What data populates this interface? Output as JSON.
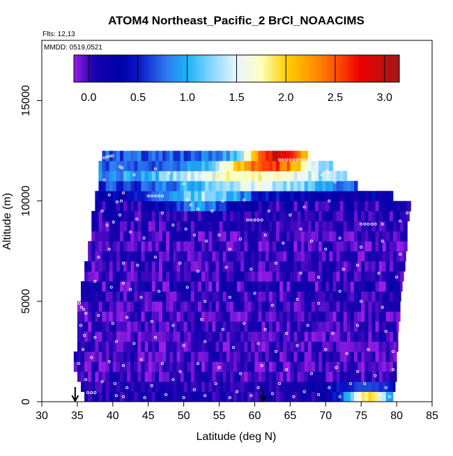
{
  "chart_data": {
    "type": "heatmap",
    "title": "ATOM4 Northeast_Pacific_2 BrCl_NOAACIMS",
    "annotations": {
      "flights": "Flts: 12,13",
      "dates": "MMDD: 0519,0521"
    },
    "xlabel": "Latitude (deg N)",
    "ylabel": "Altitude (m)",
    "xlim": [
      30,
      85
    ],
    "ylim": [
      0,
      18000
    ],
    "x_ticks": [
      30,
      35,
      40,
      45,
      50,
      55,
      60,
      65,
      70,
      75,
      80,
      85
    ],
    "x_tick_labels": [
      "30",
      "35",
      "40",
      "45",
      "50",
      "55",
      "60",
      "65",
      "70",
      "75",
      "80",
      "85"
    ],
    "y_ticks": [
      0,
      5000,
      10000,
      15000
    ],
    "y_tick_labels": [
      "0",
      "5000",
      "10000",
      "15000"
    ],
    "colorbar": {
      "range": [
        -0.15,
        3.15
      ],
      "ticks": [
        0.0,
        0.5,
        1.0,
        1.5,
        2.0,
        2.5,
        3.0
      ],
      "tick_labels": [
        "0.0",
        "0.5",
        "1.0",
        "1.5",
        "2.0",
        "2.5",
        "3.0"
      ],
      "stops": [
        {
          "v": -0.15,
          "c": "#9a1ee6"
        },
        {
          "v": 0.05,
          "c": "#1a00b0"
        },
        {
          "v": 0.3,
          "c": "#0000a6"
        },
        {
          "v": 0.5,
          "c": "#0a16c8"
        },
        {
          "v": 0.8,
          "c": "#2e7cf0"
        },
        {
          "v": 1.0,
          "c": "#1ab4f5"
        },
        {
          "v": 1.25,
          "c": "#8ad6ff"
        },
        {
          "v": 1.5,
          "c": "#e8f6ff"
        },
        {
          "v": 1.75,
          "c": "#ffffc0"
        },
        {
          "v": 2.0,
          "c": "#ffd000"
        },
        {
          "v": 2.25,
          "c": "#ff9a00"
        },
        {
          "v": 2.5,
          "c": "#ff5500"
        },
        {
          "v": 2.75,
          "c": "#ee0000"
        },
        {
          "v": 3.15,
          "c": "#a01818"
        }
      ]
    },
    "arrows_at_latitude": [
      34.7,
      61.2
    ],
    "altitude_bands": [
      {
        "alt": 0,
        "lat_min": 36.0,
        "lat_max": 79.5,
        "base": 0.1,
        "var": 0.15,
        "hot": {
          "lat": 76.0,
          "width": 3.5,
          "amp": 1.8
        }
      },
      {
        "alt": 500,
        "lat_min": 35.5,
        "lat_max": 79.8,
        "base": 0.05,
        "var": 0.1,
        "hot": {
          "lat": 75.5,
          "width": 6.0,
          "amp": 0.6
        }
      },
      {
        "alt": 1000,
        "lat_min": 35.0,
        "lat_max": 80.0,
        "base": 0.0,
        "var": 0.15
      },
      {
        "alt": 1500,
        "lat_min": 34.5,
        "lat_max": 80.0,
        "base": -0.02,
        "var": 0.15
      },
      {
        "alt": 2000,
        "lat_min": 34.5,
        "lat_max": 80.0,
        "base": 0.0,
        "var": 0.15
      },
      {
        "alt": 2500,
        "lat_min": 35.0,
        "lat_max": 80.2,
        "base": -0.02,
        "var": 0.15
      },
      {
        "alt": 3000,
        "lat_min": 35.0,
        "lat_max": 80.2,
        "base": 0.0,
        "var": 0.15
      },
      {
        "alt": 3500,
        "lat_min": 35.0,
        "lat_max": 80.3,
        "base": 0.0,
        "var": 0.15
      },
      {
        "alt": 4000,
        "lat_min": 35.0,
        "lat_max": 80.5,
        "base": -0.02,
        "var": 0.15
      },
      {
        "alt": 4500,
        "lat_min": 35.0,
        "lat_max": 80.5,
        "base": 0.0,
        "var": 0.15
      },
      {
        "alt": 5000,
        "lat_min": 35.5,
        "lat_max": 80.6,
        "base": 0.02,
        "var": 0.15
      },
      {
        "alt": 5500,
        "lat_min": 35.5,
        "lat_max": 80.8,
        "base": 0.05,
        "var": 0.25
      },
      {
        "alt": 6000,
        "lat_min": 36.0,
        "lat_max": 81.0,
        "base": 0.0,
        "var": 0.15
      },
      {
        "alt": 6500,
        "lat_min": 36.0,
        "lat_max": 81.2,
        "base": 0.0,
        "var": 0.15
      },
      {
        "alt": 7000,
        "lat_min": 36.5,
        "lat_max": 81.3,
        "base": 0.0,
        "var": 0.15
      },
      {
        "alt": 7500,
        "lat_min": 36.5,
        "lat_max": 81.5,
        "base": -0.02,
        "var": 0.15
      },
      {
        "alt": 8000,
        "lat_min": 37.0,
        "lat_max": 81.5,
        "base": 0.0,
        "var": 0.15
      },
      {
        "alt": 8500,
        "lat_min": 37.0,
        "lat_max": 81.5,
        "base": 0.02,
        "var": 0.15
      },
      {
        "alt": 9000,
        "lat_min": 37.0,
        "lat_max": 81.8,
        "base": 0.05,
        "var": 0.15
      },
      {
        "alt": 9500,
        "lat_min": 37.5,
        "lat_max": 82.0,
        "base": 0.1,
        "var": 0.2,
        "hot": {
          "lat": 52.0,
          "width": 4.5,
          "amp": 0.8
        }
      },
      {
        "alt": 10000,
        "lat_min": 37.5,
        "lat_max": 79.5,
        "base": 0.25,
        "var": 0.2,
        "hot": {
          "lat": 53.0,
          "width": 7.0,
          "amp": 1.0
        }
      },
      {
        "alt": 10500,
        "lat_min": 38.0,
        "lat_max": 74.5,
        "base": 0.6,
        "var": 0.2,
        "hot": {
          "lat": 60.0,
          "width": 10.0,
          "amp": 0.9
        }
      },
      {
        "alt": 11000,
        "lat_min": 38.0,
        "lat_max": 73.0,
        "base": 0.85,
        "var": 0.2,
        "hot": {
          "lat": 60.0,
          "width": 12.0,
          "amp": 0.9
        }
      },
      {
        "alt": 11500,
        "lat_min": 38.0,
        "lat_max": 71.0,
        "base": 0.7,
        "var": 0.2,
        "hot": {
          "lat": 62.0,
          "width": 7.0,
          "amp": 1.9
        }
      },
      {
        "alt": 12000,
        "lat_min": 38.5,
        "lat_max": 68.0,
        "base": 0.7,
        "var": 0.2,
        "hot": {
          "lat": 63.5,
          "width": 5.0,
          "amp": 2.2
        }
      }
    ],
    "sample_points": [
      [
        38.8,
        12150
      ],
      [
        39.2,
        12200
      ],
      [
        39.6,
        12230
      ],
      [
        40.0,
        12250
      ],
      [
        63.5,
        12050
      ],
      [
        64.0,
        12050
      ],
      [
        64.5,
        12050
      ],
      [
        65.0,
        12050
      ],
      [
        65.5,
        12050
      ],
      [
        66.0,
        12050
      ],
      [
        66.5,
        12050
      ],
      [
        67.0,
        12050
      ],
      [
        67.5,
        12050
      ],
      [
        41.0,
        11700
      ],
      [
        41.3,
        11650
      ],
      [
        43.0,
        11300
      ],
      [
        46.0,
        11600
      ],
      [
        48.0,
        11400
      ],
      [
        50.0,
        10850
      ],
      [
        52.5,
        11200
      ],
      [
        55.0,
        11450
      ],
      [
        59.0,
        11450
      ],
      [
        61.0,
        11350
      ],
      [
        68.5,
        11650
      ],
      [
        69.5,
        11300
      ],
      [
        70.2,
        11500
      ],
      [
        70.5,
        11400
      ],
      [
        71.3,
        10950
      ],
      [
        38.8,
        11050
      ],
      [
        39.5,
        10300
      ],
      [
        40.6,
        9950
      ],
      [
        41.2,
        10000
      ],
      [
        41.5,
        10400
      ],
      [
        45.0,
        10250
      ],
      [
        45.5,
        10250
      ],
      [
        46.0,
        10250
      ],
      [
        46.5,
        10250
      ],
      [
        47.0,
        10250
      ],
      [
        50.5,
        10050
      ],
      [
        51.0,
        9800
      ],
      [
        52.0,
        9600
      ],
      [
        54.0,
        9500
      ],
      [
        55.5,
        10000
      ],
      [
        58.5,
        10050
      ],
      [
        62.0,
        9500
      ],
      [
        65.0,
        9300
      ],
      [
        67.0,
        9700
      ],
      [
        70.5,
        10000
      ],
      [
        59.0,
        9050
      ],
      [
        59.5,
        9050
      ],
      [
        60.0,
        9050
      ],
      [
        60.5,
        9050
      ],
      [
        61.0,
        9050
      ],
      [
        75.0,
        8850
      ],
      [
        75.5,
        8850
      ],
      [
        76.0,
        8850
      ],
      [
        76.5,
        8850
      ],
      [
        77.0,
        8850
      ],
      [
        78.0,
        8850
      ],
      [
        81.5,
        9400
      ],
      [
        80.5,
        9000
      ],
      [
        38.5,
        9500
      ],
      [
        39.2,
        8800
      ],
      [
        40.1,
        8950
      ],
      [
        41.0,
        9300
      ],
      [
        42.5,
        8450
      ],
      [
        43.4,
        9100
      ],
      [
        44.4,
        8150
      ],
      [
        47.0,
        9400
      ],
      [
        48.5,
        8800
      ],
      [
        50.3,
        8600
      ],
      [
        51.5,
        8300
      ],
      [
        53.2,
        8000
      ],
      [
        55.0,
        8300
      ],
      [
        56.5,
        7600
      ],
      [
        58.0,
        8100
      ],
      [
        61.5,
        8300
      ],
      [
        64.0,
        7900
      ],
      [
        66.5,
        8600
      ],
      [
        68.0,
        8000
      ],
      [
        70.0,
        7600
      ],
      [
        72.0,
        8150
      ],
      [
        75.0,
        7700
      ],
      [
        78.0,
        8000
      ],
      [
        80.5,
        7350
      ],
      [
        38.0,
        7200
      ],
      [
        39.5,
        7600
      ],
      [
        41.5,
        6900
      ],
      [
        43.5,
        6800
      ],
      [
        46.0,
        7200
      ],
      [
        49.5,
        6900
      ],
      [
        52.0,
        6500
      ],
      [
        56.0,
        6700
      ],
      [
        59.5,
        6600
      ],
      [
        63.0,
        6900
      ],
      [
        66.5,
        6400
      ],
      [
        69.0,
        6200
      ],
      [
        72.5,
        6600
      ],
      [
        74.5,
        6800
      ],
      [
        77.5,
        6400
      ],
      [
        80.0,
        6200
      ],
      [
        37.5,
        6000
      ],
      [
        39.8,
        5700
      ],
      [
        41.5,
        5900
      ],
      [
        42.5,
        5600
      ],
      [
        44.0,
        5200
      ],
      [
        46.5,
        5500
      ],
      [
        50.5,
        5700
      ],
      [
        53.0,
        5000
      ],
      [
        56.5,
        5200
      ],
      [
        60.0,
        5400
      ],
      [
        62.5,
        4800
      ],
      [
        66.0,
        5100
      ],
      [
        69.0,
        4900
      ],
      [
        72.0,
        5500
      ],
      [
        75.0,
        5000
      ],
      [
        78.0,
        4700
      ],
      [
        35.3,
        4900
      ],
      [
        35.6,
        4700
      ],
      [
        35.9,
        4600
      ],
      [
        36.2,
        4400
      ],
      [
        38.0,
        4300
      ],
      [
        40.0,
        3900
      ],
      [
        42.0,
        4200
      ],
      [
        45.5,
        4000
      ],
      [
        48.5,
        3800
      ],
      [
        52.5,
        4100
      ],
      [
        55.5,
        3600
      ],
      [
        58.5,
        3900
      ],
      [
        61.5,
        3600
      ],
      [
        64.5,
        3400
      ],
      [
        67.5,
        3800
      ],
      [
        71.0,
        3400
      ],
      [
        74.5,
        3800
      ],
      [
        78.5,
        3500
      ],
      [
        35.5,
        3800
      ],
      [
        36.0,
        3300
      ],
      [
        37.5,
        3200
      ],
      [
        40.5,
        3000
      ],
      [
        43.0,
        2900
      ],
      [
        46.0,
        3200
      ],
      [
        50.0,
        2800
      ],
      [
        53.0,
        3000
      ],
      [
        57.0,
        2700
      ],
      [
        60.5,
        2900
      ],
      [
        63.0,
        2500
      ],
      [
        66.0,
        2800
      ],
      [
        70.0,
        2600
      ],
      [
        73.0,
        2400
      ],
      [
        76.0,
        2600
      ],
      [
        79.5,
        2500
      ],
      [
        35.8,
        2600
      ],
      [
        37.0,
        2200
      ],
      [
        39.5,
        2000
      ],
      [
        41.5,
        1800
      ],
      [
        44.0,
        2100
      ],
      [
        47.0,
        1900
      ],
      [
        49.5,
        1500
      ],
      [
        52.0,
        1900
      ],
      [
        55.0,
        1700
      ],
      [
        58.0,
        1400
      ],
      [
        61.0,
        1800
      ],
      [
        64.5,
        1600
      ],
      [
        68.0,
        1400
      ],
      [
        71.5,
        1700
      ],
      [
        74.5,
        1500
      ],
      [
        77.0,
        1300
      ],
      [
        79.5,
        1600
      ],
      [
        35.2,
        1900
      ],
      [
        36.2,
        1100
      ],
      [
        38.5,
        1000
      ],
      [
        40.3,
        900
      ],
      [
        42.0,
        700
      ],
      [
        45.5,
        800
      ],
      [
        48.5,
        1100
      ],
      [
        51.5,
        600
      ],
      [
        54.5,
        900
      ],
      [
        57.5,
        500
      ],
      [
        60.5,
        700
      ],
      [
        63.5,
        900
      ],
      [
        67.0,
        500
      ],
      [
        70.5,
        700
      ],
      [
        73.5,
        900
      ],
      [
        75.5,
        900
      ],
      [
        78.5,
        700
      ],
      [
        36.5,
        450
      ],
      [
        37.0,
        450
      ],
      [
        37.5,
        450
      ],
      [
        40.5,
        300
      ],
      [
        41.5,
        250
      ],
      [
        44.5,
        200
      ],
      [
        47.5,
        350
      ],
      [
        50.0,
        200
      ],
      [
        53.0,
        300
      ],
      [
        56.5,
        200
      ],
      [
        59.5,
        300
      ],
      [
        62.5,
        400
      ],
      [
        65.5,
        250
      ],
      [
        69.0,
        350
      ],
      [
        72.0,
        250
      ],
      [
        75.0,
        200
      ],
      [
        77.5,
        350
      ],
      [
        79.0,
        250
      ]
    ]
  }
}
